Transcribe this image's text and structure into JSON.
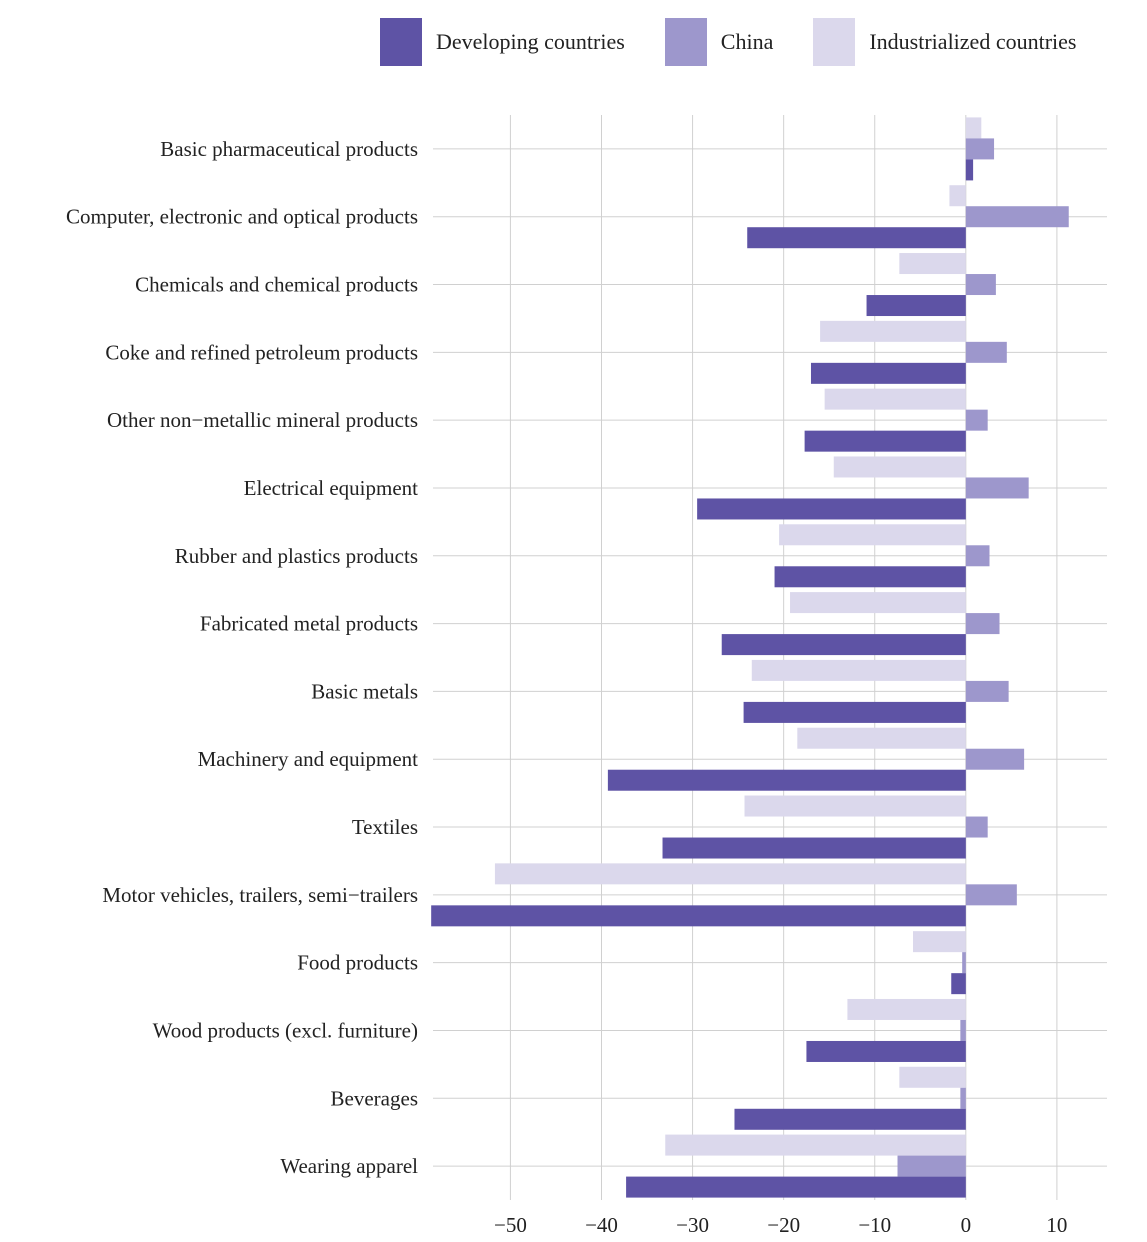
{
  "colors": {
    "developing": "#5e53a5",
    "china": "#9d97cc",
    "industrialized": "#dbd8ec",
    "grid": "#d0d0d0"
  },
  "legend": {
    "items": [
      {
        "name": "Developing countries",
        "color": "#5e53a5"
      },
      {
        "name": "China",
        "color": "#9d97cc"
      },
      {
        "name": "Industrialized countries",
        "color": "#dbd8ec"
      }
    ]
  },
  "chart_data": {
    "type": "bar",
    "orientation": "horizontal",
    "title": "",
    "xlabel": "",
    "ylabel": "",
    "xlim": [
      -58.5,
      15.5
    ],
    "xticks": [
      -50,
      -40,
      -30,
      -20,
      -10,
      0,
      10
    ],
    "xtick_labels": [
      "−50",
      "−40",
      "−30",
      "−20",
      "−10",
      "0",
      "10"
    ],
    "grid": true,
    "legend_position": "top",
    "categories": [
      "Basic pharmaceutical products",
      "Computer, electronic and optical products",
      "Chemicals and chemical products",
      "Coke and refined petroleum products",
      "Other non−metallic mineral products",
      "Electrical equipment",
      "Rubber and plastics products",
      "Fabricated metal products",
      "Basic metals",
      "Machinery and equipment",
      "Textiles",
      "Motor vehicles, trailers, semi−trailers",
      "Food products",
      "Wood products (excl. furniture)",
      "Beverages",
      "Wearing apparel"
    ],
    "series": [
      {
        "name": "Industrialized countries",
        "values": [
          1.7,
          -1.8,
          -7.3,
          -16.0,
          -15.5,
          -14.5,
          -20.5,
          -19.3,
          -23.5,
          -18.5,
          -24.3,
          -51.7,
          -5.8,
          -13.0,
          -7.3,
          -33.0
        ]
      },
      {
        "name": "China",
        "values": [
          3.1,
          11.3,
          3.3,
          4.5,
          2.4,
          6.9,
          2.6,
          3.7,
          4.7,
          6.4,
          2.4,
          5.6,
          -0.4,
          -0.6,
          -0.6,
          -7.5
        ]
      },
      {
        "name": "Developing countries",
        "values": [
          0.8,
          -24.0,
          -10.9,
          -17.0,
          -17.7,
          -29.5,
          -21.0,
          -26.8,
          -24.4,
          -39.3,
          -33.3,
          -58.7,
          -1.6,
          -17.5,
          -25.4,
          -37.3
        ]
      }
    ]
  }
}
